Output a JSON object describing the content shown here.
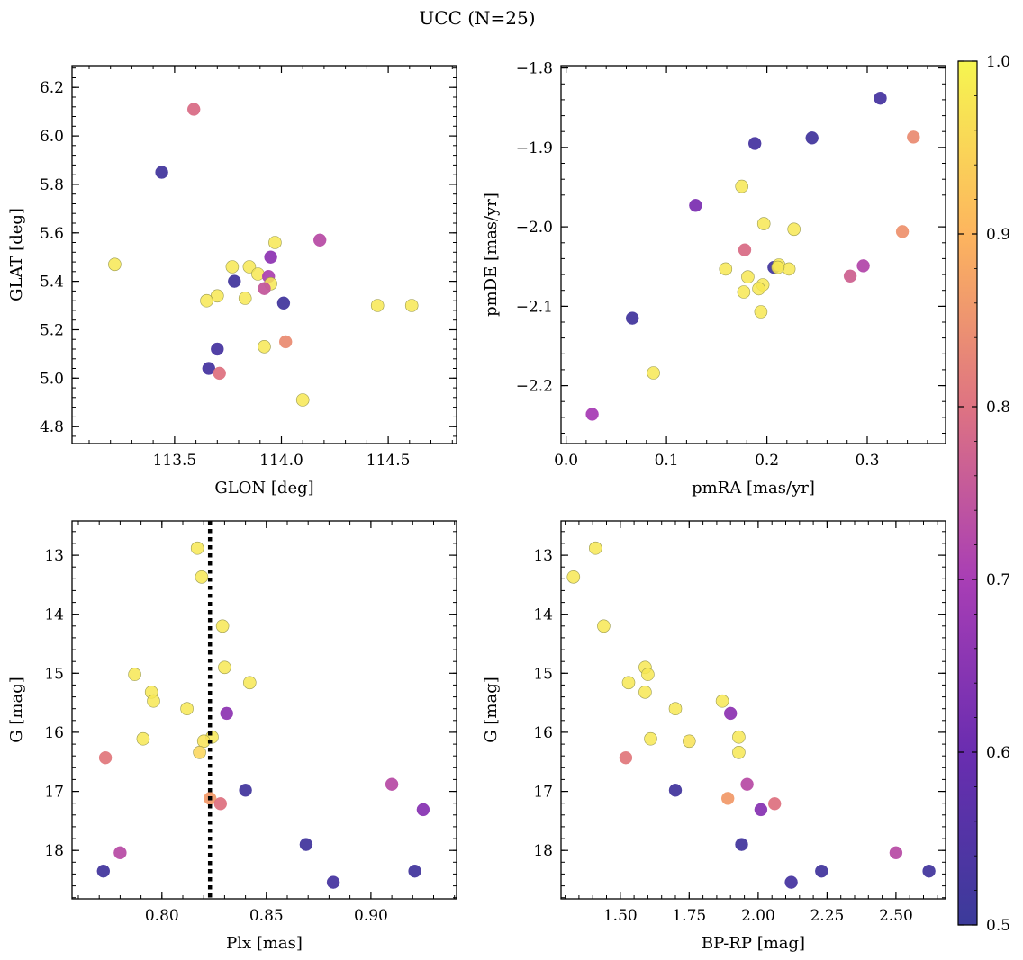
{
  "suptitle": "UCC (N=25)",
  "colorbar": {
    "colormap": "plasma",
    "vmin": 0.5,
    "vmax": 1.0,
    "ticks": [
      "0.5",
      "0.6",
      "0.7",
      "0.8",
      "0.9",
      "1.0"
    ]
  },
  "chart_data": [
    {
      "type": "scatter",
      "title": "",
      "xlabel": "GLON [deg]",
      "ylabel": "GLAT [deg]",
      "xlim": [
        113.02,
        114.82
      ],
      "ylim": [
        4.73,
        6.29
      ],
      "y_inverted": false,
      "xticks": [
        113.5,
        114.0,
        114.5
      ],
      "xtick_labels": [
        "113.5",
        "114.0",
        "114.5"
      ],
      "yticks": [
        4.8,
        5.0,
        5.2,
        5.4,
        5.6,
        5.8,
        6.0,
        6.2
      ],
      "ytick_labels": [
        "4.8",
        "5.0",
        "5.2",
        "5.4",
        "5.6",
        "5.8",
        "6.0",
        "6.2"
      ],
      "vline": null,
      "points": [
        {
          "x": 113.59,
          "y": 6.11,
          "c": 0.79
        },
        {
          "x": 113.44,
          "y": 5.85,
          "c": 0.52
        },
        {
          "x": 113.22,
          "y": 5.47,
          "c": 0.98
        },
        {
          "x": 114.18,
          "y": 5.57,
          "c": 0.73
        },
        {
          "x": 113.97,
          "y": 5.56,
          "c": 0.98
        },
        {
          "x": 113.95,
          "y": 5.5,
          "c": 0.66
        },
        {
          "x": 113.77,
          "y": 5.46,
          "c": 0.98
        },
        {
          "x": 113.85,
          "y": 5.46,
          "c": 0.98
        },
        {
          "x": 113.89,
          "y": 5.43,
          "c": 0.98
        },
        {
          "x": 113.94,
          "y": 5.42,
          "c": 0.71
        },
        {
          "x": 113.78,
          "y": 5.4,
          "c": 0.52
        },
        {
          "x": 113.95,
          "y": 5.39,
          "c": 0.98
        },
        {
          "x": 113.92,
          "y": 5.37,
          "c": 0.75
        },
        {
          "x": 113.7,
          "y": 5.34,
          "c": 0.98
        },
        {
          "x": 113.83,
          "y": 5.33,
          "c": 0.98
        },
        {
          "x": 113.65,
          "y": 5.32,
          "c": 0.98
        },
        {
          "x": 114.01,
          "y": 5.31,
          "c": 0.52
        },
        {
          "x": 114.45,
          "y": 5.3,
          "c": 0.98
        },
        {
          "x": 114.61,
          "y": 5.3,
          "c": 0.98
        },
        {
          "x": 114.02,
          "y": 5.15,
          "c": 0.84
        },
        {
          "x": 113.92,
          "y": 5.13,
          "c": 0.98
        },
        {
          "x": 113.7,
          "y": 5.12,
          "c": 0.53
        },
        {
          "x": 113.66,
          "y": 5.04,
          "c": 0.53
        },
        {
          "x": 113.71,
          "y": 5.02,
          "c": 0.8
        },
        {
          "x": 114.1,
          "y": 4.91,
          "c": 0.98
        }
      ]
    },
    {
      "type": "scatter",
      "title": "",
      "xlabel": "pmRA [mas/yr]",
      "ylabel": "pmDE [mas/yr]",
      "xlim": [
        -0.005,
        0.378
      ],
      "ylim": [
        -2.273,
        -1.797
      ],
      "y_inverted": false,
      "xticks": [
        0.0,
        0.1,
        0.2,
        0.3
      ],
      "xtick_labels": [
        "0.0",
        "0.1",
        "0.2",
        "0.3"
      ],
      "yticks": [
        -2.2,
        -2.1,
        -2.0,
        -1.9,
        -1.8
      ],
      "ytick_labels": [
        "−2.2",
        "−2.1",
        "−2.0",
        "−1.9",
        "−1.8"
      ],
      "vline": null,
      "points": [
        {
          "x": 0.313,
          "y": -1.838,
          "c": 0.53
        },
        {
          "x": 0.346,
          "y": -1.887,
          "c": 0.84
        },
        {
          "x": 0.245,
          "y": -1.888,
          "c": 0.52
        },
        {
          "x": 0.188,
          "y": -1.895,
          "c": 0.53
        },
        {
          "x": 0.175,
          "y": -1.949,
          "c": 0.98
        },
        {
          "x": 0.129,
          "y": -1.973,
          "c": 0.63
        },
        {
          "x": 0.197,
          "y": -1.996,
          "c": 0.98
        },
        {
          "x": 0.227,
          "y": -2.003,
          "c": 0.98
        },
        {
          "x": 0.335,
          "y": -2.006,
          "c": 0.85
        },
        {
          "x": 0.178,
          "y": -2.029,
          "c": 0.79
        },
        {
          "x": 0.296,
          "y": -2.049,
          "c": 0.72
        },
        {
          "x": 0.207,
          "y": -2.051,
          "c": 0.52
        },
        {
          "x": 0.212,
          "y": -2.048,
          "c": 0.98
        },
        {
          "x": 0.159,
          "y": -2.053,
          "c": 0.98
        },
        {
          "x": 0.222,
          "y": -2.053,
          "c": 0.98
        },
        {
          "x": 0.283,
          "y": -2.062,
          "c": 0.77
        },
        {
          "x": 0.181,
          "y": -2.063,
          "c": 0.98
        },
        {
          "x": 0.196,
          "y": -2.073,
          "c": 0.98
        },
        {
          "x": 0.192,
          "y": -2.078,
          "c": 0.98
        },
        {
          "x": 0.177,
          "y": -2.082,
          "c": 0.98
        },
        {
          "x": 0.194,
          "y": -2.107,
          "c": 0.98
        },
        {
          "x": 0.066,
          "y": -2.115,
          "c": 0.52
        },
        {
          "x": 0.087,
          "y": -2.184,
          "c": 0.98
        },
        {
          "x": 0.026,
          "y": -2.236,
          "c": 0.7
        },
        {
          "x": 0.211,
          "y": -2.051,
          "c": 0.98
        }
      ]
    },
    {
      "type": "scatter",
      "title": "",
      "xlabel": "Plx [mas]",
      "ylabel": "G [mag]",
      "xlim": [
        0.757,
        0.941
      ],
      "ylim": [
        12.42,
        18.82
      ],
      "y_inverted": true,
      "xticks": [
        0.8,
        0.85,
        0.9
      ],
      "xtick_labels": [
        "0.80",
        "0.85",
        "0.90"
      ],
      "yticks": [
        13,
        14,
        15,
        16,
        17,
        18
      ],
      "ytick_labels": [
        "13",
        "14",
        "15",
        "16",
        "17",
        "18"
      ],
      "vline": 0.823,
      "points": [
        {
          "x": 0.817,
          "y": 12.88,
          "c": 0.98
        },
        {
          "x": 0.819,
          "y": 13.37,
          "c": 0.98
        },
        {
          "x": 0.829,
          "y": 14.2,
          "c": 0.98
        },
        {
          "x": 0.83,
          "y": 14.9,
          "c": 0.98
        },
        {
          "x": 0.787,
          "y": 15.02,
          "c": 0.98
        },
        {
          "x": 0.842,
          "y": 15.16,
          "c": 0.98
        },
        {
          "x": 0.795,
          "y": 15.32,
          "c": 0.98
        },
        {
          "x": 0.796,
          "y": 15.47,
          "c": 0.98
        },
        {
          "x": 0.812,
          "y": 15.6,
          "c": 0.98
        },
        {
          "x": 0.831,
          "y": 15.68,
          "c": 0.66
        },
        {
          "x": 0.791,
          "y": 16.11,
          "c": 0.98
        },
        {
          "x": 0.824,
          "y": 16.08,
          "c": 0.98
        },
        {
          "x": 0.82,
          "y": 16.15,
          "c": 0.97
        },
        {
          "x": 0.818,
          "y": 16.34,
          "c": 0.95
        },
        {
          "x": 0.773,
          "y": 16.43,
          "c": 0.81
        },
        {
          "x": 0.91,
          "y": 16.88,
          "c": 0.73
        },
        {
          "x": 0.84,
          "y": 16.98,
          "c": 0.52
        },
        {
          "x": 0.823,
          "y": 17.12,
          "c": 0.86
        },
        {
          "x": 0.828,
          "y": 17.21,
          "c": 0.8
        },
        {
          "x": 0.925,
          "y": 17.31,
          "c": 0.65
        },
        {
          "x": 0.869,
          "y": 17.9,
          "c": 0.52
        },
        {
          "x": 0.78,
          "y": 18.04,
          "c": 0.73
        },
        {
          "x": 0.772,
          "y": 18.35,
          "c": 0.52
        },
        {
          "x": 0.921,
          "y": 18.35,
          "c": 0.52
        },
        {
          "x": 0.882,
          "y": 18.54,
          "c": 0.53
        }
      ]
    },
    {
      "type": "scatter",
      "title": "",
      "xlabel": "BP-RP [mag]",
      "ylabel": "G [mag]",
      "xlim": [
        1.285,
        2.68
      ],
      "ylim": [
        12.42,
        18.82
      ],
      "y_inverted": true,
      "xticks": [
        1.5,
        1.75,
        2.0,
        2.25,
        2.5
      ],
      "xtick_labels": [
        "1.50",
        "1.75",
        "2.00",
        "2.25",
        "2.50"
      ],
      "yticks": [
        13,
        14,
        15,
        16,
        17,
        18
      ],
      "ytick_labels": [
        "13",
        "14",
        "15",
        "16",
        "17",
        "18"
      ],
      "vline": null,
      "points": [
        {
          "x": 1.41,
          "y": 12.88,
          "c": 0.98
        },
        {
          "x": 1.33,
          "y": 13.37,
          "c": 0.98
        },
        {
          "x": 1.44,
          "y": 14.2,
          "c": 0.98
        },
        {
          "x": 1.59,
          "y": 14.9,
          "c": 0.98
        },
        {
          "x": 1.6,
          "y": 15.02,
          "c": 0.98
        },
        {
          "x": 1.53,
          "y": 15.16,
          "c": 0.98
        },
        {
          "x": 1.59,
          "y": 15.32,
          "c": 0.98
        },
        {
          "x": 1.87,
          "y": 15.47,
          "c": 0.98
        },
        {
          "x": 1.7,
          "y": 15.6,
          "c": 0.98
        },
        {
          "x": 1.9,
          "y": 15.68,
          "c": 0.66
        },
        {
          "x": 1.93,
          "y": 16.08,
          "c": 0.98
        },
        {
          "x": 1.61,
          "y": 16.11,
          "c": 0.98
        },
        {
          "x": 1.75,
          "y": 16.15,
          "c": 0.97
        },
        {
          "x": 1.93,
          "y": 16.34,
          "c": 0.98
        },
        {
          "x": 1.52,
          "y": 16.43,
          "c": 0.81
        },
        {
          "x": 1.96,
          "y": 16.88,
          "c": 0.73
        },
        {
          "x": 1.7,
          "y": 16.98,
          "c": 0.52
        },
        {
          "x": 1.89,
          "y": 17.12,
          "c": 0.86
        },
        {
          "x": 2.06,
          "y": 17.21,
          "c": 0.8
        },
        {
          "x": 2.01,
          "y": 17.31,
          "c": 0.65
        },
        {
          "x": 1.94,
          "y": 17.9,
          "c": 0.52
        },
        {
          "x": 2.5,
          "y": 18.04,
          "c": 0.73
        },
        {
          "x": 2.23,
          "y": 18.35,
          "c": 0.52
        },
        {
          "x": 2.62,
          "y": 18.35,
          "c": 0.52
        },
        {
          "x": 2.12,
          "y": 18.54,
          "c": 0.53
        }
      ]
    }
  ]
}
